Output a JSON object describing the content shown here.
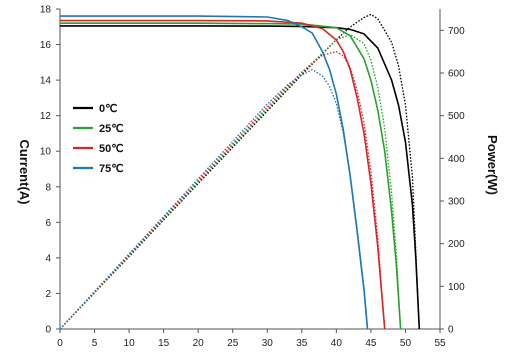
{
  "chart_data": {
    "type": "line",
    "title": "",
    "xlabel": "",
    "ylabel": "Current(A)",
    "y2label": "Power(W)",
    "xlim": [
      0,
      55
    ],
    "ylim": [
      0,
      18
    ],
    "y2lim": [
      0,
      750
    ],
    "x_ticks": [
      "0",
      "5",
      "10",
      "15",
      "20",
      "25",
      "30",
      "35",
      "40",
      "45",
      "50",
      "55"
    ],
    "y_ticks": [
      "0",
      "2",
      "4",
      "6",
      "8",
      "10",
      "12",
      "14",
      "16",
      "18"
    ],
    "y2_ticks": [
      "0",
      "100",
      "200",
      "300",
      "400",
      "500",
      "600",
      "700"
    ],
    "grid": false,
    "legend_position": "left-center",
    "series": [
      {
        "name": "0℃",
        "color": "#000000",
        "isc": 17.05,
        "voc": 52.0,
        "vmp": 45.0,
        "pmax": 737,
        "current": [
          [
            0,
            17.05
          ],
          [
            10,
            17.05
          ],
          [
            20,
            17.05
          ],
          [
            30,
            17.04
          ],
          [
            35,
            17.02
          ],
          [
            40,
            16.95
          ],
          [
            42,
            16.85
          ],
          [
            44,
            16.6
          ],
          [
            46,
            15.8
          ],
          [
            48,
            14.0
          ],
          [
            49,
            12.6
          ],
          [
            50,
            10.5
          ],
          [
            51,
            7.0
          ],
          [
            51.5,
            4.0
          ],
          [
            52,
            0
          ]
        ],
        "power": [
          [
            0,
            0
          ],
          [
            10,
            170
          ],
          [
            20,
            341
          ],
          [
            30,
            511
          ],
          [
            35,
            596
          ],
          [
            40,
            678
          ],
          [
            42,
            708
          ],
          [
            44,
            730
          ],
          [
            45,
            737
          ],
          [
            46,
            727
          ],
          [
            48,
            672
          ],
          [
            49,
            617
          ],
          [
            50,
            525
          ],
          [
            51,
            357
          ],
          [
            52,
            0
          ]
        ]
      },
      {
        "name": "25℃",
        "color": "#2ca02c",
        "isc": 17.2,
        "voc": 49.3,
        "vmp": 42.0,
        "pmax": 690,
        "current": [
          [
            0,
            17.2
          ],
          [
            10,
            17.2
          ],
          [
            20,
            17.2
          ],
          [
            30,
            17.18
          ],
          [
            35,
            17.15
          ],
          [
            40,
            16.95
          ],
          [
            42,
            16.5
          ],
          [
            44,
            15.2
          ],
          [
            45,
            14.0
          ],
          [
            46,
            12.3
          ],
          [
            47,
            10.0
          ],
          [
            48,
            6.6
          ],
          [
            48.7,
            3.5
          ],
          [
            49.3,
            0
          ]
        ],
        "power": [
          [
            0,
            0
          ],
          [
            10,
            172
          ],
          [
            20,
            344
          ],
          [
            30,
            515
          ],
          [
            35,
            600
          ],
          [
            40,
            678
          ],
          [
            42,
            690
          ],
          [
            44,
            669
          ],
          [
            45,
            630
          ],
          [
            46,
            566
          ],
          [
            47,
            470
          ],
          [
            48,
            317
          ],
          [
            48.7,
            170
          ],
          [
            49.3,
            0
          ]
        ]
      },
      {
        "name": "50℃",
        "color": "#d62728",
        "isc": 17.35,
        "voc": 47.0,
        "vmp": 40.0,
        "pmax": 650,
        "current": [
          [
            0,
            17.35
          ],
          [
            10,
            17.35
          ],
          [
            20,
            17.35
          ],
          [
            30,
            17.33
          ],
          [
            35,
            17.2
          ],
          [
            38,
            16.9
          ],
          [
            40,
            16.25
          ],
          [
            41,
            15.6
          ],
          [
            42,
            14.6
          ],
          [
            43,
            13.0
          ],
          [
            44,
            11.0
          ],
          [
            45,
            8.2
          ],
          [
            46,
            4.6
          ],
          [
            47,
            0
          ]
        ],
        "power": [
          [
            0,
            0
          ],
          [
            10,
            174
          ],
          [
            20,
            347
          ],
          [
            30,
            520
          ],
          [
            35,
            602
          ],
          [
            38,
            642
          ],
          [
            40,
            650
          ],
          [
            41,
            640
          ],
          [
            42,
            613
          ],
          [
            43,
            559
          ],
          [
            44,
            484
          ],
          [
            45,
            369
          ],
          [
            46,
            212
          ],
          [
            47,
            0
          ]
        ]
      },
      {
        "name": "75℃",
        "color": "#1f77b4",
        "isc": 17.6,
        "voc": 44.5,
        "vmp": 36.5,
        "pmax": 608,
        "current": [
          [
            0,
            17.6
          ],
          [
            10,
            17.6
          ],
          [
            20,
            17.6
          ],
          [
            30,
            17.55
          ],
          [
            33,
            17.35
          ],
          [
            35,
            17.0
          ],
          [
            36.5,
            16.65
          ],
          [
            38,
            15.6
          ],
          [
            39,
            14.6
          ],
          [
            40,
            13.2
          ],
          [
            41,
            11.2
          ],
          [
            42,
            8.6
          ],
          [
            43,
            5.5
          ],
          [
            44,
            2.2
          ],
          [
            44.5,
            0
          ]
        ],
        "power": [
          [
            0,
            0
          ],
          [
            10,
            176
          ],
          [
            20,
            352
          ],
          [
            30,
            527
          ],
          [
            33,
            573
          ],
          [
            35,
            595
          ],
          [
            36.5,
            608
          ],
          [
            38,
            593
          ],
          [
            39,
            569
          ],
          [
            40,
            528
          ],
          [
            41,
            459
          ],
          [
            42,
            361
          ],
          [
            43,
            237
          ],
          [
            44,
            97
          ],
          [
            44.5,
            0
          ]
        ]
      }
    ]
  }
}
